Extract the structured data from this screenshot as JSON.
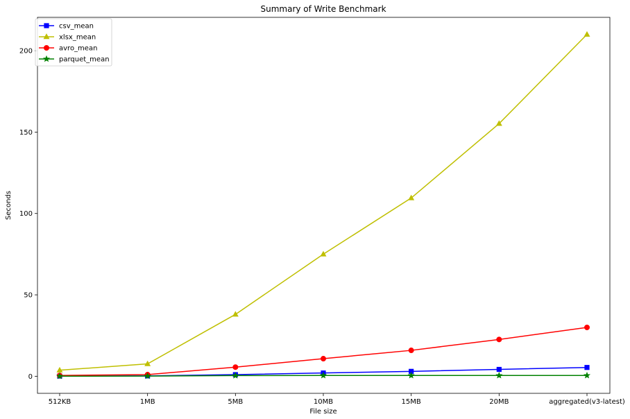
{
  "chart_data": {
    "type": "line",
    "title": "Summary of Write Benchmark",
    "xlabel": "File size",
    "ylabel": "Seconds",
    "categories": [
      "512KB",
      "1MB",
      "5MB",
      "10MB",
      "15MB",
      "20MB",
      "aggregated(v3-latest)"
    ],
    "ylim": [
      -10.5,
      220.5
    ],
    "yticks": [
      0,
      50,
      100,
      150,
      200
    ],
    "grid": false,
    "legend_position": "top-left",
    "series": [
      {
        "name": "csv_mean",
        "color": "#0000ff",
        "marker": "square",
        "values": [
          0.1,
          0.2,
          1.0,
          2.0,
          3.0,
          4.2,
          5.4
        ]
      },
      {
        "name": "xlsx_mean",
        "color": "#bfbf00",
        "marker": "triangle",
        "values": [
          3.7,
          7.6,
          38.0,
          75.0,
          109.5,
          155.2,
          210.0
        ]
      },
      {
        "name": "avro_mean",
        "color": "#ff0000",
        "marker": "circle",
        "values": [
          0.5,
          1.0,
          5.6,
          10.8,
          15.9,
          22.6,
          30.0
        ]
      },
      {
        "name": "parquet_mean",
        "color": "#008000",
        "marker": "star",
        "values": [
          0.05,
          0.1,
          0.4,
          0.5,
          0.5,
          0.5,
          0.5
        ]
      }
    ]
  }
}
